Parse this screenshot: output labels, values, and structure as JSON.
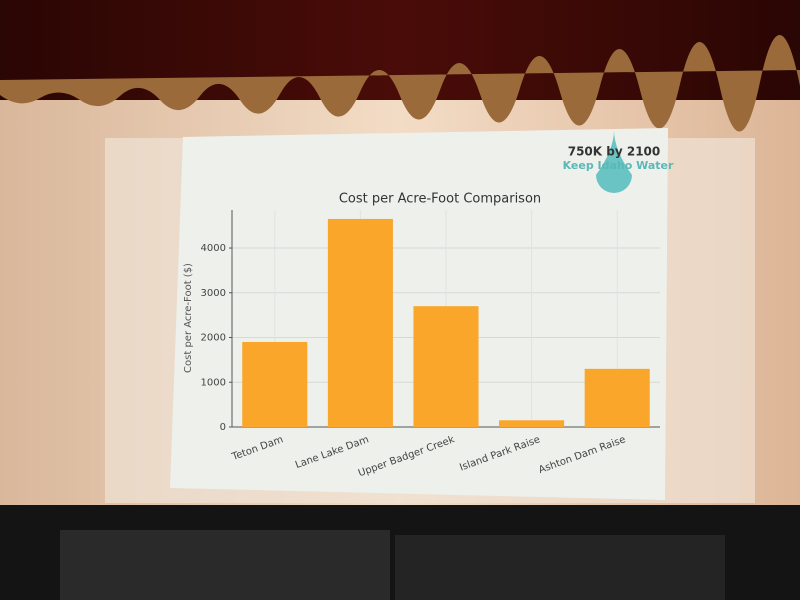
{
  "chart_data": {
    "type": "bar",
    "title": "Cost per Acre-Foot Comparison",
    "y_label": "Cost per Acre-Foot ($)",
    "annotations": [
      "750K by 2100",
      "Keep Idaho Water"
    ],
    "categories": [
      "Teton Dam",
      "Lane Lake Dam",
      "Upper Badger Creek",
      "Island Park Raise",
      "Ashton Dam Raise"
    ],
    "values": [
      1900,
      4650,
      2700,
      150,
      1300
    ],
    "color": "#f9a62a",
    "ylim": [
      0,
      4850
    ],
    "yticks": [
      0,
      1000,
      2000,
      3000,
      4000
    ],
    "grid": true
  }
}
